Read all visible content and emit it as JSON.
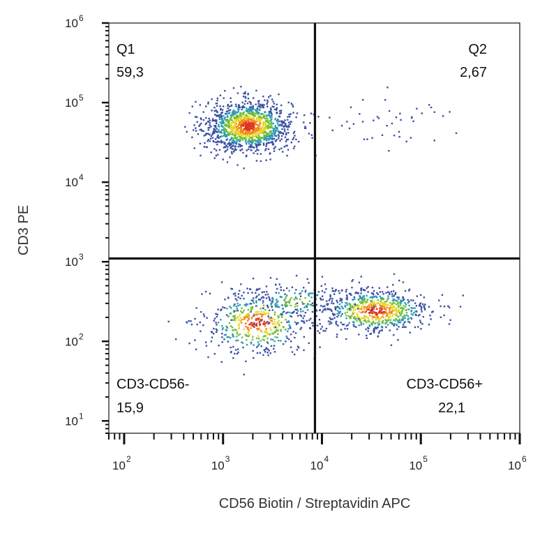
{
  "chart_data": {
    "type": "scatter",
    "title": "",
    "xlabel": "CD56 Biotin / Streptavidin APC",
    "ylabel": "CD3 PE",
    "x_scale": "log",
    "y_scale": "log",
    "xlim": [
      70,
      1000000
    ],
    "ylim": [
      7,
      1000000
    ],
    "x_ticks": [
      {
        "base": "10",
        "exp": "2",
        "value": 100
      },
      {
        "base": "10",
        "exp": "3",
        "value": 1000
      },
      {
        "base": "10",
        "exp": "4",
        "value": 10000
      },
      {
        "base": "10",
        "exp": "5",
        "value": 100000
      },
      {
        "base": "10",
        "exp": "6",
        "value": 1000000
      }
    ],
    "y_ticks": [
      {
        "base": "10",
        "exp": "1",
        "value": 10
      },
      {
        "base": "10",
        "exp": "2",
        "value": 100
      },
      {
        "base": "10",
        "exp": "3",
        "value": 1000
      },
      {
        "base": "10",
        "exp": "4",
        "value": 10000
      },
      {
        "base": "10",
        "exp": "5",
        "value": 100000
      },
      {
        "base": "10",
        "exp": "6",
        "value": 1000000
      }
    ],
    "gate": {
      "x": 8500,
      "y": 1100
    },
    "quadrants": [
      {
        "name": "Q1",
        "value": "59,3",
        "position": "top-left"
      },
      {
        "name": "Q2",
        "value": "2,67",
        "position": "top-right"
      },
      {
        "name": "CD3-CD56-",
        "value": "15,9",
        "position": "bottom-left"
      },
      {
        "name": "CD3-CD56+",
        "value": "22,1",
        "position": "bottom-right"
      }
    ],
    "populations": [
      {
        "cx": 1800,
        "cy": 50000,
        "sx": 0.22,
        "sy": 0.16,
        "n": 1350
      },
      {
        "cx": 35000,
        "cy": 240,
        "sx": 0.28,
        "sy": 0.14,
        "n": 700
      },
      {
        "cx": 2200,
        "cy": 170,
        "sx": 0.27,
        "sy": 0.2,
        "n": 500
      },
      {
        "cx": 5500,
        "cy": 320,
        "sx": 0.3,
        "sy": 0.15,
        "n": 200
      },
      {
        "cx": 40000,
        "cy": 60000,
        "sx": 0.4,
        "sy": 0.15,
        "n": 45
      }
    ],
    "grid": false,
    "legend": "none",
    "colors": {
      "low": "#3b4fa3",
      "mid": "#2e9ab6",
      "green": "#6fbf3a",
      "yellow": "#e8d62a",
      "orange": "#f08a1c",
      "high": "#e0321c"
    }
  }
}
